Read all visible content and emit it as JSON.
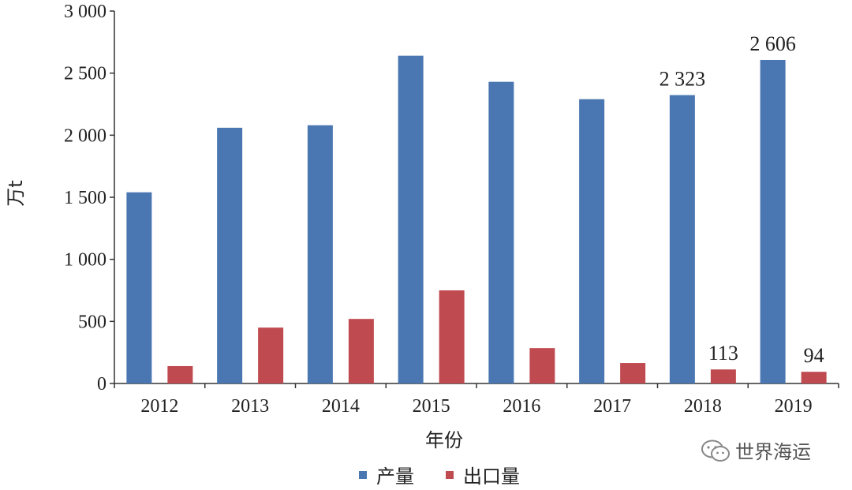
{
  "chart_data": {
    "type": "bar",
    "categories": [
      "2012",
      "2013",
      "2014",
      "2015",
      "2016",
      "2017",
      "2018",
      "2019"
    ],
    "series": [
      {
        "name": "产量",
        "values": [
          1540,
          2060,
          2080,
          2640,
          2430,
          2290,
          2323,
          2606
        ],
        "color": "#4a77b1",
        "labels": [
          null,
          null,
          null,
          null,
          null,
          null,
          "2 323",
          "2 606"
        ]
      },
      {
        "name": "出口量",
        "values": [
          140,
          450,
          520,
          750,
          285,
          165,
          113,
          94
        ],
        "color": "#bf4b50",
        "labels": [
          null,
          null,
          null,
          null,
          null,
          null,
          "113",
          "94"
        ]
      }
    ],
    "ylim": [
      0,
      3000
    ],
    "yticks": [
      0,
      500,
      1000,
      1500,
      2000,
      2500,
      3000
    ],
    "ytick_labels": [
      "0",
      "500",
      "1 000",
      "1 500",
      "2 000",
      "2 500",
      "3 000"
    ],
    "xlabel": "年份",
    "ylabel": "万t",
    "legend_position": "bottom-center",
    "grid": false
  },
  "watermark": {
    "text": "世界海运",
    "icon": "wechat-icon"
  }
}
